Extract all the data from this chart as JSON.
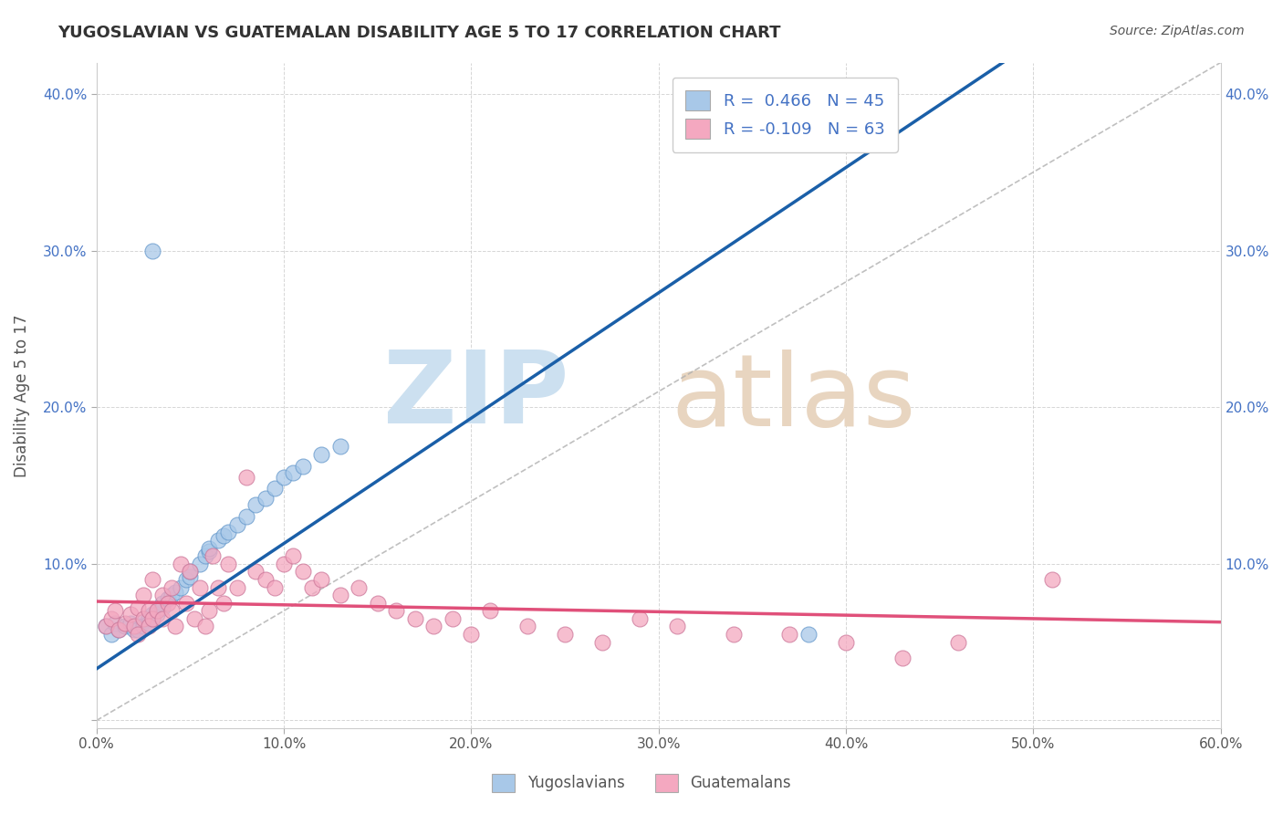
{
  "title": "YUGOSLAVIAN VS GUATEMALAN DISABILITY AGE 5 TO 17 CORRELATION CHART",
  "source": "Source: ZipAtlas.com",
  "ylabel": "Disability Age 5 to 17",
  "xlim": [
    0.0,
    0.6
  ],
  "ylim": [
    -0.005,
    0.42
  ],
  "xticks": [
    0.0,
    0.1,
    0.2,
    0.3,
    0.4,
    0.5,
    0.6
  ],
  "xticklabels": [
    "0.0%",
    "10.0%",
    "20.0%",
    "30.0%",
    "40.0%",
    "50.0%",
    "60.0%"
  ],
  "yticks": [
    0.0,
    0.1,
    0.2,
    0.3,
    0.4
  ],
  "yticklabels": [
    "",
    "10.0%",
    "20.0%",
    "30.0%",
    "40.0%"
  ],
  "right_yticklabels": [
    "",
    "10.0%",
    "20.0%",
    "30.0%",
    "40.0%"
  ],
  "blue_color": "#a8c8e8",
  "pink_color": "#f4a8c0",
  "blue_line_color": "#1a5fa8",
  "pink_line_color": "#e0507a",
  "grid_color": "#cccccc",
  "legend_R_blue": "0.466",
  "legend_N_blue": "45",
  "legend_R_pink": "-0.109",
  "legend_N_pink": "63",
  "yugoslavian_x": [
    0.005,
    0.008,
    0.01,
    0.012,
    0.015,
    0.018,
    0.02,
    0.022,
    0.022,
    0.025,
    0.025,
    0.028,
    0.028,
    0.03,
    0.03,
    0.032,
    0.032,
    0.035,
    0.035,
    0.038,
    0.04,
    0.042,
    0.045,
    0.048,
    0.05,
    0.05,
    0.055,
    0.058,
    0.06,
    0.06,
    0.065,
    0.068,
    0.07,
    0.075,
    0.08,
    0.085,
    0.09,
    0.095,
    0.1,
    0.105,
    0.11,
    0.12,
    0.13,
    0.03,
    0.38
  ],
  "yugoslavian_y": [
    0.06,
    0.055,
    0.062,
    0.058,
    0.06,
    0.062,
    0.058,
    0.06,
    0.058,
    0.063,
    0.06,
    0.065,
    0.062,
    0.068,
    0.065,
    0.07,
    0.068,
    0.075,
    0.072,
    0.078,
    0.08,
    0.082,
    0.085,
    0.09,
    0.092,
    0.095,
    0.1,
    0.105,
    0.108,
    0.11,
    0.115,
    0.118,
    0.12,
    0.125,
    0.13,
    0.138,
    0.142,
    0.148,
    0.155,
    0.158,
    0.162,
    0.17,
    0.175,
    0.3,
    0.055
  ],
  "guatemalan_x": [
    0.005,
    0.008,
    0.01,
    0.012,
    0.015,
    0.018,
    0.02,
    0.022,
    0.022,
    0.025,
    0.025,
    0.028,
    0.028,
    0.03,
    0.03,
    0.032,
    0.035,
    0.035,
    0.038,
    0.04,
    0.04,
    0.042,
    0.045,
    0.048,
    0.05,
    0.052,
    0.055,
    0.058,
    0.06,
    0.062,
    0.065,
    0.068,
    0.07,
    0.075,
    0.08,
    0.085,
    0.09,
    0.095,
    0.1,
    0.105,
    0.11,
    0.115,
    0.12,
    0.13,
    0.14,
    0.15,
    0.16,
    0.17,
    0.18,
    0.19,
    0.2,
    0.21,
    0.23,
    0.25,
    0.27,
    0.29,
    0.31,
    0.34,
    0.37,
    0.4,
    0.43,
    0.46,
    0.51
  ],
  "guatemalan_y": [
    0.06,
    0.065,
    0.07,
    0.058,
    0.062,
    0.068,
    0.06,
    0.072,
    0.055,
    0.065,
    0.08,
    0.07,
    0.06,
    0.065,
    0.09,
    0.07,
    0.08,
    0.065,
    0.075,
    0.07,
    0.085,
    0.06,
    0.1,
    0.075,
    0.095,
    0.065,
    0.085,
    0.06,
    0.07,
    0.105,
    0.085,
    0.075,
    0.1,
    0.085,
    0.155,
    0.095,
    0.09,
    0.085,
    0.1,
    0.105,
    0.095,
    0.085,
    0.09,
    0.08,
    0.085,
    0.075,
    0.07,
    0.065,
    0.06,
    0.065,
    0.055,
    0.07,
    0.06,
    0.055,
    0.05,
    0.065,
    0.06,
    0.055,
    0.055,
    0.05,
    0.04,
    0.05,
    0.09
  ]
}
